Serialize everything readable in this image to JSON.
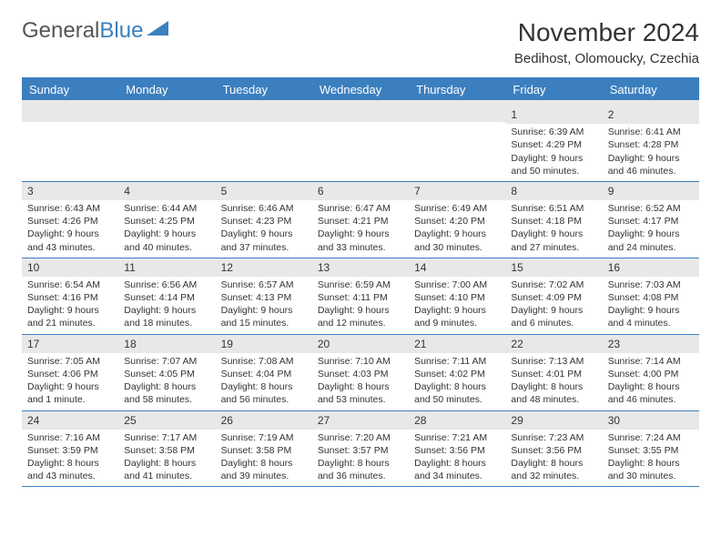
{
  "brand": {
    "word1": "General",
    "word2": "Blue"
  },
  "title": "November 2024",
  "location": "Bedihost, Olomoucky, Czechia",
  "colors": {
    "header_bg": "#3b7fbf",
    "header_text": "#ffffff",
    "daynum_bg": "#e8e8e8",
    "border": "#3b7fbf",
    "text": "#333333"
  },
  "weekdays": [
    "Sunday",
    "Monday",
    "Tuesday",
    "Wednesday",
    "Thursday",
    "Friday",
    "Saturday"
  ],
  "weeks": [
    [
      {
        "n": "",
        "sunrise": "",
        "sunset": "",
        "daylight": ""
      },
      {
        "n": "",
        "sunrise": "",
        "sunset": "",
        "daylight": ""
      },
      {
        "n": "",
        "sunrise": "",
        "sunset": "",
        "daylight": ""
      },
      {
        "n": "",
        "sunrise": "",
        "sunset": "",
        "daylight": ""
      },
      {
        "n": "",
        "sunrise": "",
        "sunset": "",
        "daylight": ""
      },
      {
        "n": "1",
        "sunrise": "Sunrise: 6:39 AM",
        "sunset": "Sunset: 4:29 PM",
        "daylight": "Daylight: 9 hours and 50 minutes."
      },
      {
        "n": "2",
        "sunrise": "Sunrise: 6:41 AM",
        "sunset": "Sunset: 4:28 PM",
        "daylight": "Daylight: 9 hours and 46 minutes."
      }
    ],
    [
      {
        "n": "3",
        "sunrise": "Sunrise: 6:43 AM",
        "sunset": "Sunset: 4:26 PM",
        "daylight": "Daylight: 9 hours and 43 minutes."
      },
      {
        "n": "4",
        "sunrise": "Sunrise: 6:44 AM",
        "sunset": "Sunset: 4:25 PM",
        "daylight": "Daylight: 9 hours and 40 minutes."
      },
      {
        "n": "5",
        "sunrise": "Sunrise: 6:46 AM",
        "sunset": "Sunset: 4:23 PM",
        "daylight": "Daylight: 9 hours and 37 minutes."
      },
      {
        "n": "6",
        "sunrise": "Sunrise: 6:47 AM",
        "sunset": "Sunset: 4:21 PM",
        "daylight": "Daylight: 9 hours and 33 minutes."
      },
      {
        "n": "7",
        "sunrise": "Sunrise: 6:49 AM",
        "sunset": "Sunset: 4:20 PM",
        "daylight": "Daylight: 9 hours and 30 minutes."
      },
      {
        "n": "8",
        "sunrise": "Sunrise: 6:51 AM",
        "sunset": "Sunset: 4:18 PM",
        "daylight": "Daylight: 9 hours and 27 minutes."
      },
      {
        "n": "9",
        "sunrise": "Sunrise: 6:52 AM",
        "sunset": "Sunset: 4:17 PM",
        "daylight": "Daylight: 9 hours and 24 minutes."
      }
    ],
    [
      {
        "n": "10",
        "sunrise": "Sunrise: 6:54 AM",
        "sunset": "Sunset: 4:16 PM",
        "daylight": "Daylight: 9 hours and 21 minutes."
      },
      {
        "n": "11",
        "sunrise": "Sunrise: 6:56 AM",
        "sunset": "Sunset: 4:14 PM",
        "daylight": "Daylight: 9 hours and 18 minutes."
      },
      {
        "n": "12",
        "sunrise": "Sunrise: 6:57 AM",
        "sunset": "Sunset: 4:13 PM",
        "daylight": "Daylight: 9 hours and 15 minutes."
      },
      {
        "n": "13",
        "sunrise": "Sunrise: 6:59 AM",
        "sunset": "Sunset: 4:11 PM",
        "daylight": "Daylight: 9 hours and 12 minutes."
      },
      {
        "n": "14",
        "sunrise": "Sunrise: 7:00 AM",
        "sunset": "Sunset: 4:10 PM",
        "daylight": "Daylight: 9 hours and 9 minutes."
      },
      {
        "n": "15",
        "sunrise": "Sunrise: 7:02 AM",
        "sunset": "Sunset: 4:09 PM",
        "daylight": "Daylight: 9 hours and 6 minutes."
      },
      {
        "n": "16",
        "sunrise": "Sunrise: 7:03 AM",
        "sunset": "Sunset: 4:08 PM",
        "daylight": "Daylight: 9 hours and 4 minutes."
      }
    ],
    [
      {
        "n": "17",
        "sunrise": "Sunrise: 7:05 AM",
        "sunset": "Sunset: 4:06 PM",
        "daylight": "Daylight: 9 hours and 1 minute."
      },
      {
        "n": "18",
        "sunrise": "Sunrise: 7:07 AM",
        "sunset": "Sunset: 4:05 PM",
        "daylight": "Daylight: 8 hours and 58 minutes."
      },
      {
        "n": "19",
        "sunrise": "Sunrise: 7:08 AM",
        "sunset": "Sunset: 4:04 PM",
        "daylight": "Daylight: 8 hours and 56 minutes."
      },
      {
        "n": "20",
        "sunrise": "Sunrise: 7:10 AM",
        "sunset": "Sunset: 4:03 PM",
        "daylight": "Daylight: 8 hours and 53 minutes."
      },
      {
        "n": "21",
        "sunrise": "Sunrise: 7:11 AM",
        "sunset": "Sunset: 4:02 PM",
        "daylight": "Daylight: 8 hours and 50 minutes."
      },
      {
        "n": "22",
        "sunrise": "Sunrise: 7:13 AM",
        "sunset": "Sunset: 4:01 PM",
        "daylight": "Daylight: 8 hours and 48 minutes."
      },
      {
        "n": "23",
        "sunrise": "Sunrise: 7:14 AM",
        "sunset": "Sunset: 4:00 PM",
        "daylight": "Daylight: 8 hours and 46 minutes."
      }
    ],
    [
      {
        "n": "24",
        "sunrise": "Sunrise: 7:16 AM",
        "sunset": "Sunset: 3:59 PM",
        "daylight": "Daylight: 8 hours and 43 minutes."
      },
      {
        "n": "25",
        "sunrise": "Sunrise: 7:17 AM",
        "sunset": "Sunset: 3:58 PM",
        "daylight": "Daylight: 8 hours and 41 minutes."
      },
      {
        "n": "26",
        "sunrise": "Sunrise: 7:19 AM",
        "sunset": "Sunset: 3:58 PM",
        "daylight": "Daylight: 8 hours and 39 minutes."
      },
      {
        "n": "27",
        "sunrise": "Sunrise: 7:20 AM",
        "sunset": "Sunset: 3:57 PM",
        "daylight": "Daylight: 8 hours and 36 minutes."
      },
      {
        "n": "28",
        "sunrise": "Sunrise: 7:21 AM",
        "sunset": "Sunset: 3:56 PM",
        "daylight": "Daylight: 8 hours and 34 minutes."
      },
      {
        "n": "29",
        "sunrise": "Sunrise: 7:23 AM",
        "sunset": "Sunset: 3:56 PM",
        "daylight": "Daylight: 8 hours and 32 minutes."
      },
      {
        "n": "30",
        "sunrise": "Sunrise: 7:24 AM",
        "sunset": "Sunset: 3:55 PM",
        "daylight": "Daylight: 8 hours and 30 minutes."
      }
    ]
  ]
}
